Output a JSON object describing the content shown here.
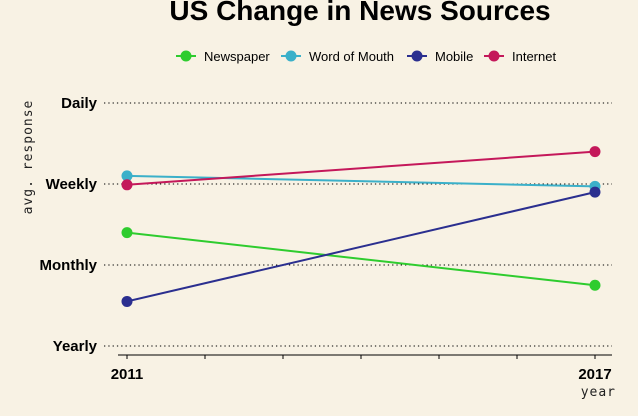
{
  "chart_data": {
    "type": "line",
    "title": "US Change in News Sources",
    "xlabel": "year",
    "ylabel": "avg. response",
    "x": [
      2011,
      2017
    ],
    "x_tick_labels": [
      "2011",
      "2017"
    ],
    "y_tick_labels": [
      "Yearly",
      "Monthly",
      "Weekly",
      "Daily"
    ],
    "y_tick_values": [
      1,
      2,
      3,
      4
    ],
    "ylim": [
      0.9,
      4.15
    ],
    "legend_position": "top",
    "grid": "horizontal dotted",
    "series": [
      {
        "name": "Newspaper",
        "color": "#2ecc2e",
        "values": [
          2.4,
          1.75
        ]
      },
      {
        "name": "Word of Mouth",
        "color": "#3bb0c9",
        "values": [
          3.1,
          2.97
        ]
      },
      {
        "name": "Mobile",
        "color": "#2b2f8f",
        "values": [
          1.55,
          2.9
        ]
      },
      {
        "name": "Internet",
        "color": "#c4185a",
        "values": [
          2.99,
          3.4
        ]
      }
    ]
  }
}
